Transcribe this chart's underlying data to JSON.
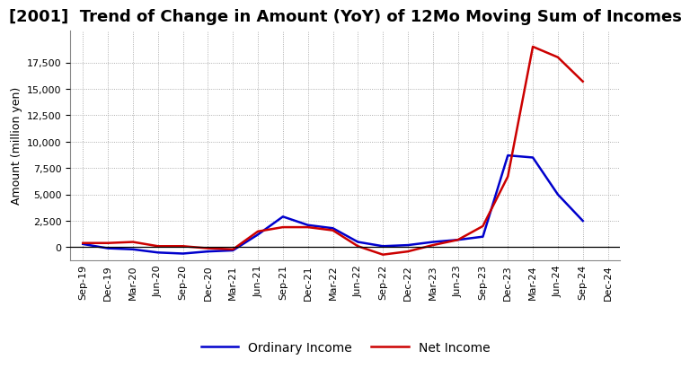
{
  "title": "[2001]  Trend of Change in Amount (YoY) of 12Mo Moving Sum of Incomes",
  "ylabel": "Amount (million yen)",
  "background_color": "#ffffff",
  "grid_color": "#999999",
  "x_labels": [
    "Sep-19",
    "Dec-19",
    "Mar-20",
    "Jun-20",
    "Sep-20",
    "Dec-20",
    "Mar-21",
    "Jun-21",
    "Sep-21",
    "Dec-21",
    "Mar-22",
    "Jun-22",
    "Sep-22",
    "Dec-22",
    "Mar-23",
    "Jun-23",
    "Sep-23",
    "Dec-23",
    "Mar-24",
    "Jun-24",
    "Sep-24",
    "Dec-24"
  ],
  "ordinary_income": [
    300,
    -100,
    -200,
    -500,
    -600,
    -400,
    -300,
    1200,
    2900,
    2100,
    1800,
    500,
    100,
    200,
    500,
    700,
    1000,
    8700,
    8500,
    5000,
    2500,
    null
  ],
  "net_income": [
    400,
    400,
    500,
    100,
    100,
    -100,
    -200,
    1500,
    1900,
    1900,
    1600,
    100,
    -700,
    -400,
    200,
    700,
    2000,
    6700,
    19000,
    18000,
    15700,
    null
  ],
  "ordinary_color": "#0000cc",
  "net_color": "#cc0000",
  "ylim_min": -1200,
  "ylim_max": 20500,
  "yticks": [
    0,
    2500,
    5000,
    7500,
    10000,
    12500,
    15000,
    17500
  ],
  "legend_ordinary": "Ordinary Income",
  "legend_net": "Net Income",
  "line_width": 1.8,
  "title_fontsize": 13,
  "axis_fontsize": 9,
  "tick_fontsize": 8
}
